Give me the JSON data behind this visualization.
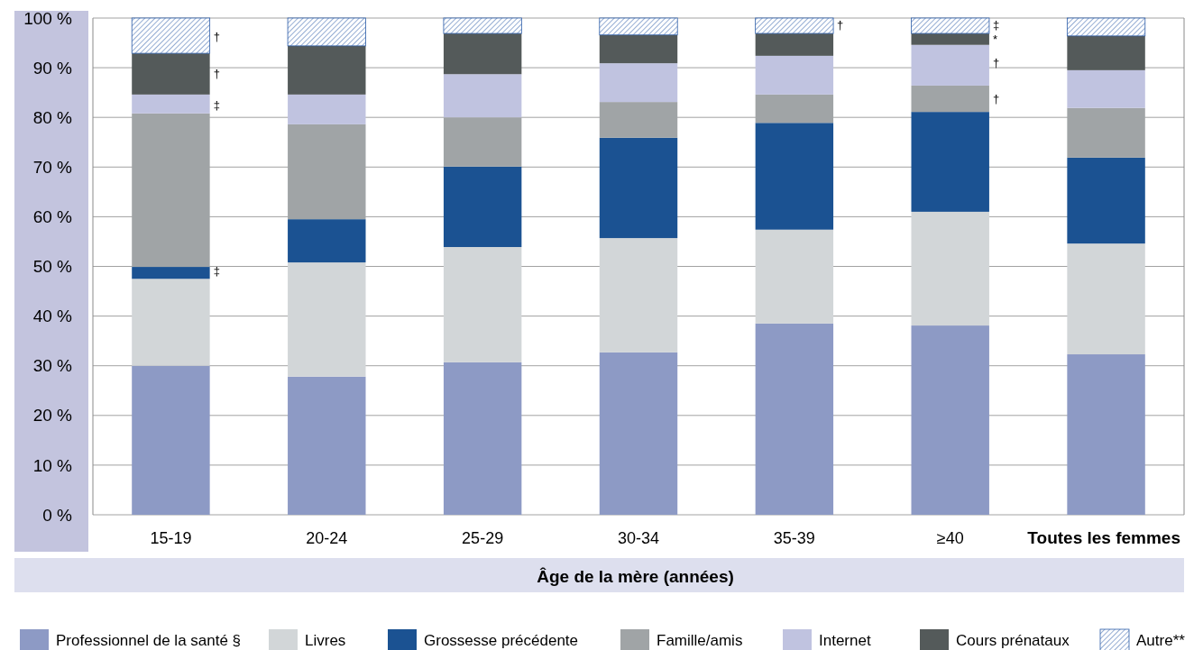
{
  "chart_data": {
    "type": "bar",
    "stacked": true,
    "xlabel": "Âge de la mère (années)",
    "categories": [
      "15-19",
      "20-24",
      "25-29",
      "30-34",
      "35-39",
      "≥40",
      "Toutes les femmes"
    ],
    "series": [
      {
        "name": "Professionnel de la santé §",
        "color": "#8d9ac5",
        "values": [
          30,
          27.8,
          30.7,
          32.7,
          38.5,
          38.1,
          32.3
        ]
      },
      {
        "name": "Livres",
        "color": "#d2d6d8",
        "values": [
          17.5,
          23,
          23.2,
          23,
          18.9,
          22.9,
          22.3
        ]
      },
      {
        "name": "Grossesse précédente",
        "color": "#1b5292",
        "values": [
          2.4,
          8.7,
          16.2,
          20.2,
          21.5,
          20.1,
          17.3
        ]
      },
      {
        "name": "Famille/amis",
        "color": "#a0a4a6",
        "values": [
          30.9,
          19.1,
          9.9,
          7.2,
          5.7,
          5.3,
          10
        ]
      },
      {
        "name": "Internet",
        "color": "#c0c3e0",
        "values": [
          3.8,
          6,
          8.7,
          7.8,
          7.8,
          8.2,
          7.6
        ]
      },
      {
        "name": "Cours prénataux",
        "color": "#545a5a",
        "values": [
          8.3,
          9.8,
          8.2,
          5.7,
          4.5,
          2.3,
          6.9
        ]
      },
      {
        "name": "Autre**",
        "color": "#2b5ca8",
        "values": [
          7.1,
          5.6,
          3.1,
          3.4,
          3.1,
          3.1,
          3.6
        ]
      }
    ],
    "ylim": [
      0,
      100
    ],
    "yticks": [
      {
        "value": 0,
        "label": "0 %"
      },
      {
        "value": 10,
        "label": "10 %"
      },
      {
        "value": 20,
        "label": "20 %"
      },
      {
        "value": 30,
        "label": "30 %"
      },
      {
        "value": 40,
        "label": "40 %"
      },
      {
        "value": 50,
        "label": "50 %"
      },
      {
        "value": 60,
        "label": "60 %"
      },
      {
        "value": 70,
        "label": "70 %"
      },
      {
        "value": 80,
        "label": "80 %"
      },
      {
        "value": 90,
        "label": "90 %"
      },
      {
        "value": 100,
        "label": "100 %"
      }
    ],
    "grid": "y",
    "legend": "bottom",
    "annotations": [
      "†",
      "†",
      "‡",
      "‡",
      "†",
      "‡",
      "*",
      "†",
      "†"
    ]
  }
}
